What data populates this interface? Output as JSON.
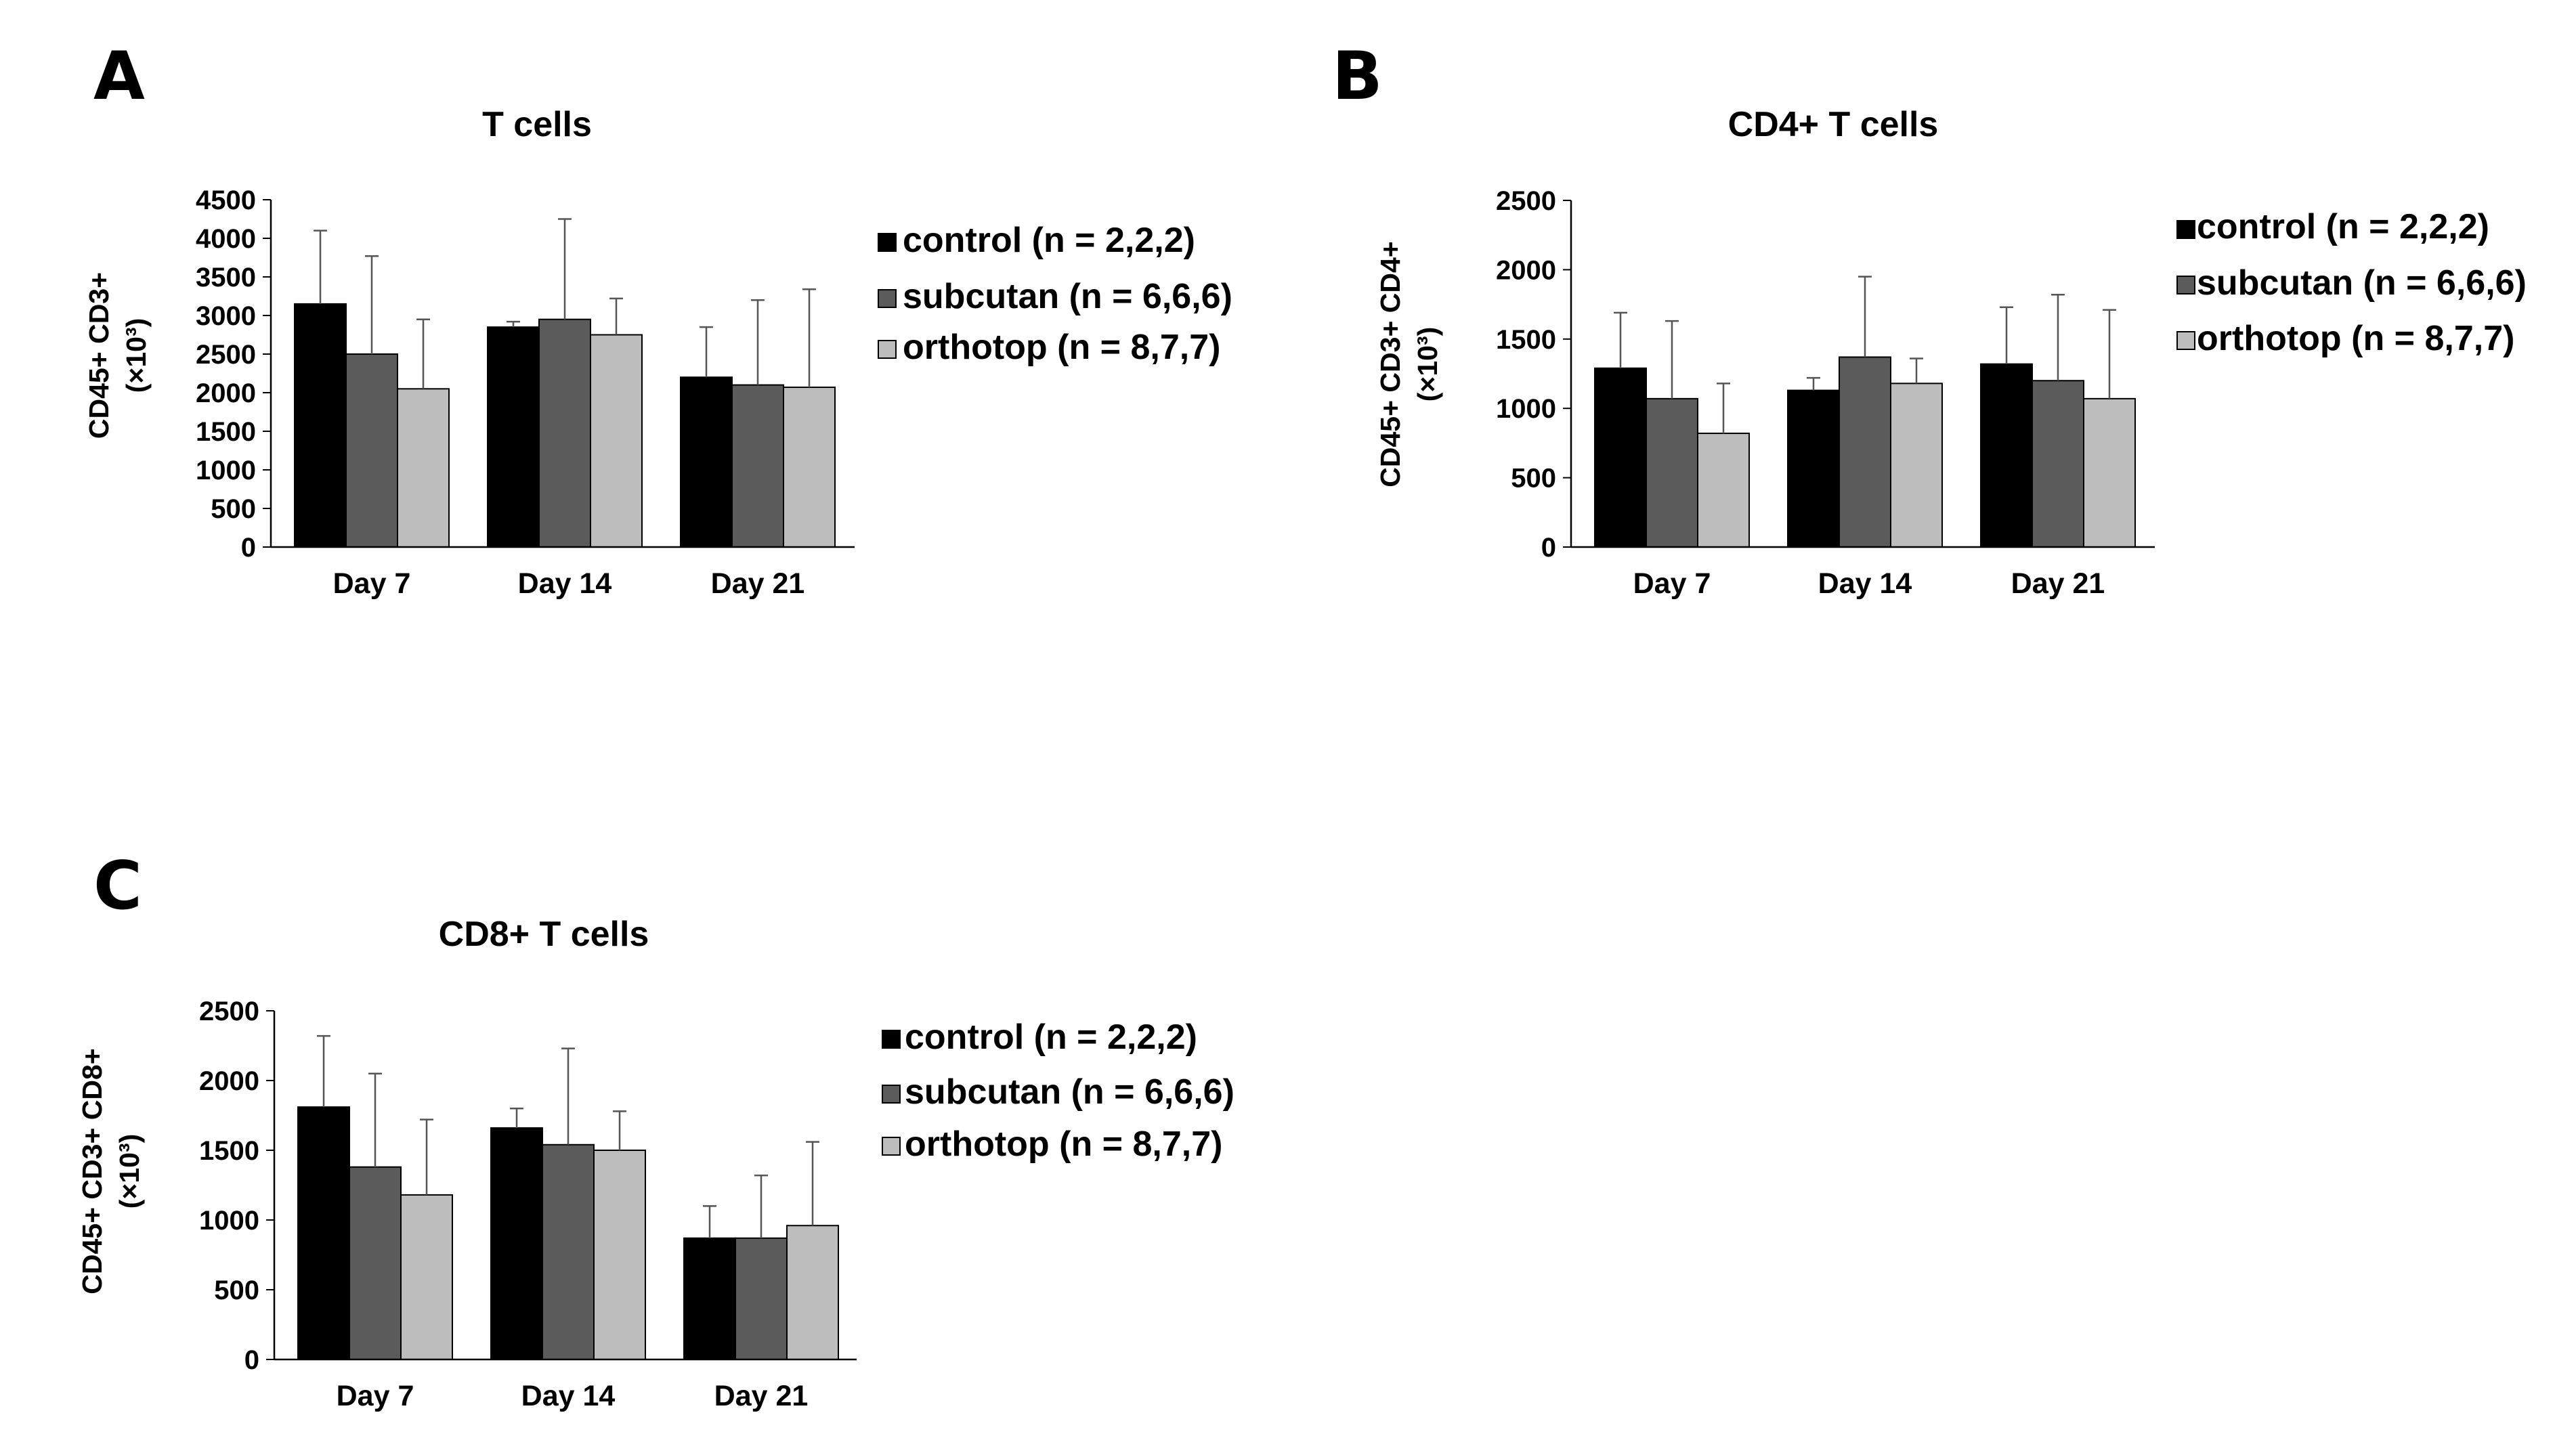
{
  "series_colors": {
    "control": "#000000",
    "subcutan": "#5b5b5b",
    "orthotop": "#bdbdbd"
  },
  "chart_data": [
    {
      "panel": "A",
      "type": "bar",
      "title": "T cells",
      "ylabel_main": "CD45+ CD3+",
      "ylabel_unit": "(×10³)",
      "categories": [
        "Day 7",
        "Day 14",
        "Day 21"
      ],
      "ylim": [
        0,
        4500
      ],
      "yticks": [
        0,
        500,
        1000,
        1500,
        2000,
        2500,
        3000,
        3500,
        4000,
        4500
      ],
      "legend_position": "right",
      "series": [
        {
          "name": "control (n = 2,2,2)",
          "values": [
            3150,
            2850,
            2200
          ],
          "errors": [
            950,
            70,
            650
          ]
        },
        {
          "name": "subcutan (n = 6,6,6)",
          "values": [
            2500,
            2950,
            2100
          ],
          "errors": [
            1270,
            1300,
            1100
          ]
        },
        {
          "name": "orthotop (n = 8,7,7)",
          "values": [
            2050,
            2750,
            2070
          ],
          "errors": [
            900,
            470,
            1270
          ]
        }
      ]
    },
    {
      "panel": "B",
      "type": "bar",
      "title": "CD4+ T cells",
      "ylabel_main": "CD45+ CD3+ CD4+",
      "ylabel_unit": "(×10³)",
      "categories": [
        "Day 7",
        "Day 14",
        "Day 21"
      ],
      "ylim": [
        0,
        2500
      ],
      "yticks": [
        0,
        500,
        1000,
        1500,
        2000,
        2500
      ],
      "legend_position": "right",
      "series": [
        {
          "name": "control (n = 2,2,2)",
          "values": [
            1290,
            1130,
            1320
          ],
          "errors": [
            400,
            90,
            410
          ]
        },
        {
          "name": "subcutan (n = 6,6,6)",
          "values": [
            1070,
            1370,
            1200
          ],
          "errors": [
            560,
            580,
            620
          ]
        },
        {
          "name": "orthotop (n = 8,7,7)",
          "values": [
            820,
            1180,
            1070
          ],
          "errors": [
            360,
            180,
            640
          ]
        }
      ]
    },
    {
      "panel": "C",
      "type": "bar",
      "title": "CD8+ T cells",
      "ylabel_main": "CD45+ CD3+ CD8+",
      "ylabel_unit": "(×10³)",
      "categories": [
        "Day 7",
        "Day 14",
        "Day 21"
      ],
      "ylim": [
        0,
        2500
      ],
      "yticks": [
        0,
        500,
        1000,
        1500,
        2000,
        2500
      ],
      "legend_position": "right",
      "series": [
        {
          "name": "control (n = 2,2,2)",
          "values": [
            1810,
            1660,
            870
          ],
          "errors": [
            510,
            140,
            230
          ]
        },
        {
          "name": "subcutan (n = 6,6,6)",
          "values": [
            1380,
            1540,
            870
          ],
          "errors": [
            670,
            690,
            450
          ]
        },
        {
          "name": "orthotop (n = 8,7,7)",
          "values": [
            1180,
            1500,
            960
          ],
          "errors": [
            540,
            280,
            600
          ]
        }
      ]
    }
  ]
}
